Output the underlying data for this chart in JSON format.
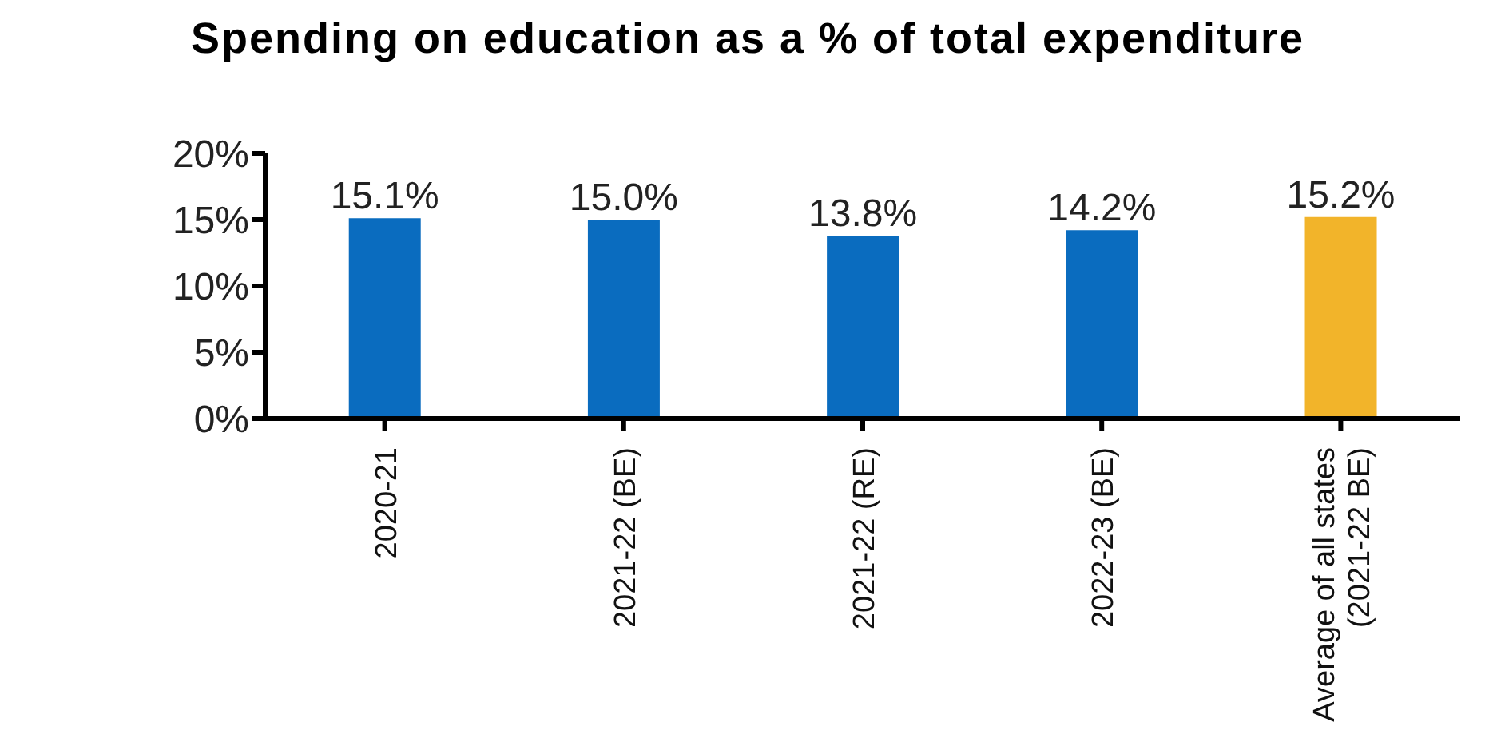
{
  "chart_data": {
    "type": "bar",
    "title": "Spending on education as a % of total expenditure",
    "categories": [
      "2020-21",
      "2021-22 (BE)",
      "2021-22 (RE)",
      "2022-23 (BE)",
      "Average of all states (2021-22 BE)"
    ],
    "values": [
      15.1,
      15.0,
      13.8,
      14.2,
      15.2
    ],
    "colors": [
      "#0a6cbf",
      "#0a6cbf",
      "#0a6cbf",
      "#0a6cbf",
      "#f2b42a"
    ],
    "value_labels": [
      "15.1%",
      "15.0%",
      "13.8%",
      "14.2%",
      "15.2%"
    ],
    "ylim": [
      0,
      20
    ],
    "yticks": [
      {
        "value": 0,
        "label": "0%"
      },
      {
        "value": 5,
        "label": "5%"
      },
      {
        "value": 10,
        "label": "10%"
      },
      {
        "value": 15,
        "label": "15%"
      },
      {
        "value": 20,
        "label": "20%"
      }
    ],
    "grid": false,
    "legend": false
  }
}
